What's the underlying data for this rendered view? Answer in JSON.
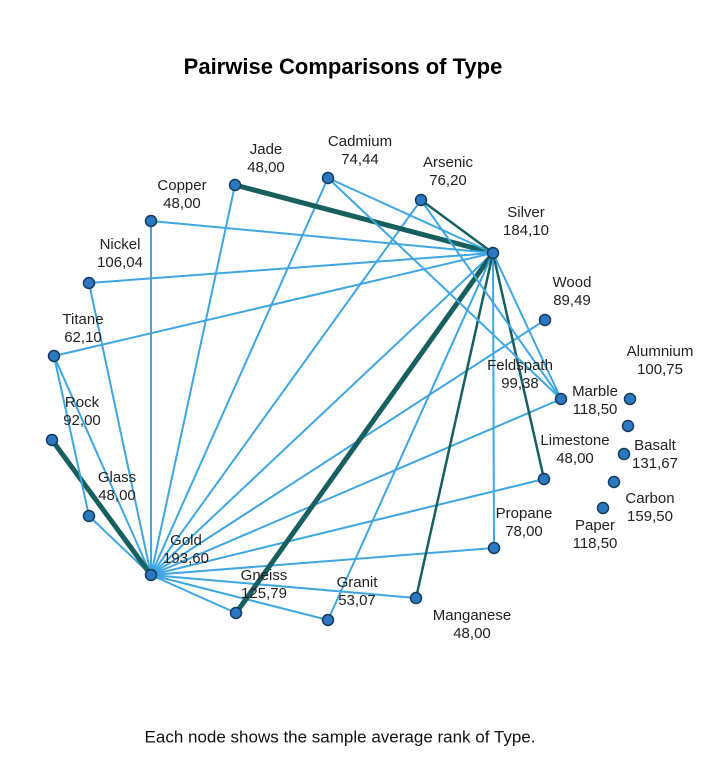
{
  "title": "Pairwise Comparisons of Type",
  "nodes": [
    {
      "label": "Jade",
      "value": "48,00"
    },
    {
      "label": "Cadmium",
      "value": "74,44"
    },
    {
      "label": "Arsenic",
      "value": "76,20"
    },
    {
      "label": "Silver",
      "value": "184,10"
    },
    {
      "label": "Copper",
      "value": "48,00"
    },
    {
      "label": "Nickel",
      "value": "106,04"
    },
    {
      "label": "Wood",
      "value": "89,49"
    },
    {
      "label": "Titane",
      "value": "62,10"
    },
    {
      "label": "Feldspath",
      "value": "99,38"
    },
    {
      "label": "Alumnium",
      "value": "100,75"
    },
    {
      "label": "Marble",
      "value": "118,50"
    },
    {
      "label": "Rock",
      "value": "92,00"
    },
    {
      "label": "Limestone",
      "value": "48,00"
    },
    {
      "label": "Basalt",
      "value": "131,67"
    },
    {
      "label": "Carbon",
      "value": "159,50"
    },
    {
      "label": "Paper",
      "value": "118,50"
    },
    {
      "label": "Glass",
      "value": "48,00"
    },
    {
      "label": "Propane",
      "value": "78,00"
    },
    {
      "label": "Gold",
      "value": "193,60"
    },
    {
      "label": "Gneiss",
      "value": "125,79"
    },
    {
      "label": "Granit",
      "value": "53,07"
    },
    {
      "label": "Manganese",
      "value": "48,00"
    }
  ],
  "footnote": "Each node shows the sample average rank of Type."
}
